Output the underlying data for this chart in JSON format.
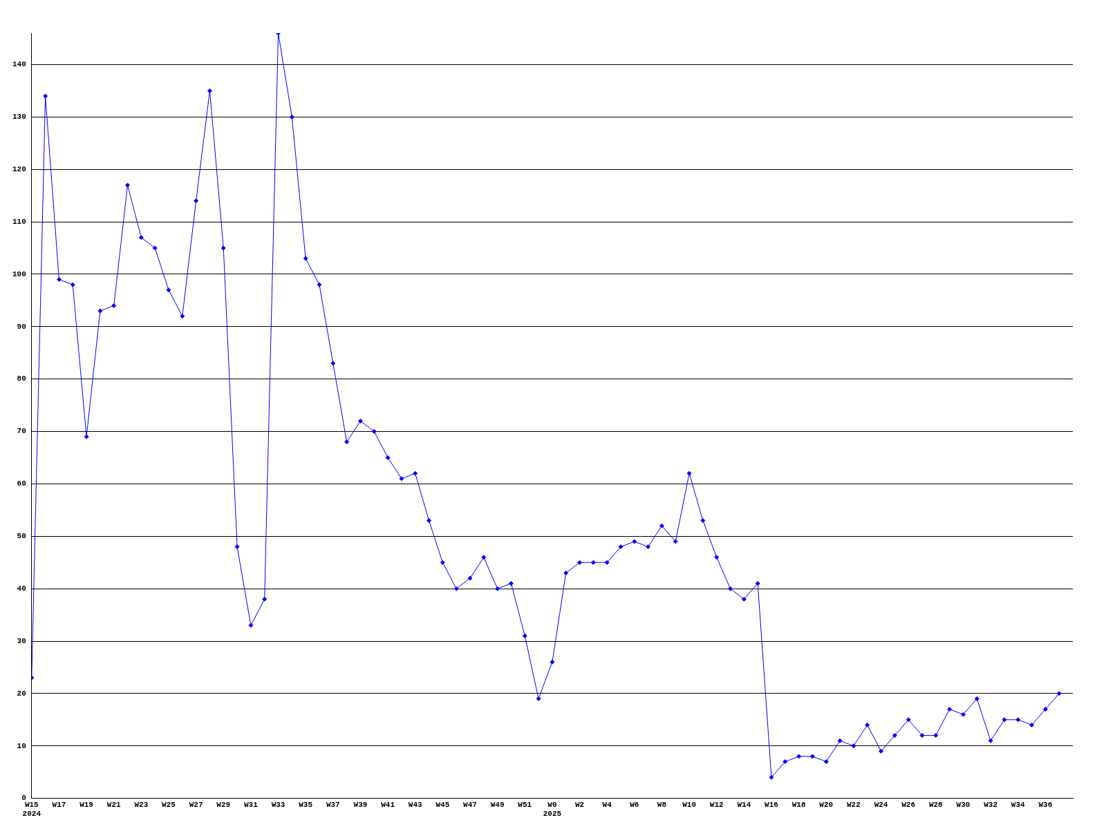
{
  "chart_data": {
    "type": "line",
    "categories": [
      "W15\n2024",
      null,
      "W17",
      null,
      "W19",
      null,
      "W21",
      null,
      "W23",
      null,
      "W25",
      null,
      "W27",
      null,
      "W29",
      null,
      "W31",
      null,
      "W33",
      null,
      "W35",
      null,
      "W37",
      null,
      "W39",
      null,
      "W41",
      null,
      "W43",
      null,
      "W45",
      null,
      "W47",
      null,
      "W49",
      null,
      "W51",
      null,
      "W0\n2025",
      null,
      "W2",
      null,
      "W4",
      null,
      "W6",
      null,
      "W8",
      null,
      "W10",
      null,
      "W12",
      null,
      "W14",
      null,
      "W16",
      null,
      "W18",
      null,
      "W20",
      null,
      "W22",
      null,
      "W24",
      null,
      "W26",
      null,
      "W28",
      null,
      "W30",
      null,
      "W32",
      null,
      "W34",
      null,
      "W36",
      null
    ],
    "series": [
      {
        "color": "#0000ff",
        "values": [
          23,
          134,
          99,
          98,
          69,
          93,
          94,
          117,
          107,
          105,
          97,
          92,
          114,
          135,
          105,
          48,
          33,
          38,
          146,
          130,
          103,
          98,
          83,
          68,
          72,
          70,
          65,
          61,
          62,
          53,
          45,
          40,
          42,
          46,
          40,
          41,
          31,
          19,
          26,
          43,
          45,
          45,
          45,
          48,
          49,
          48,
          52,
          49,
          62,
          53,
          46,
          40,
          38,
          41,
          4,
          7,
          8,
          8,
          7,
          11,
          10,
          14,
          9,
          12,
          15,
          12,
          12,
          17,
          16,
          19,
          11,
          15,
          15,
          14,
          17,
          20
        ]
      }
    ],
    "ylim": [
      0,
      146
    ],
    "yticks": [
      0,
      10,
      20,
      30,
      40,
      50,
      60,
      70,
      80,
      90,
      100,
      110,
      120,
      130,
      140
    ],
    "grid": "y",
    "marker": "diamond",
    "line_style": "solid",
    "legend": false
  }
}
